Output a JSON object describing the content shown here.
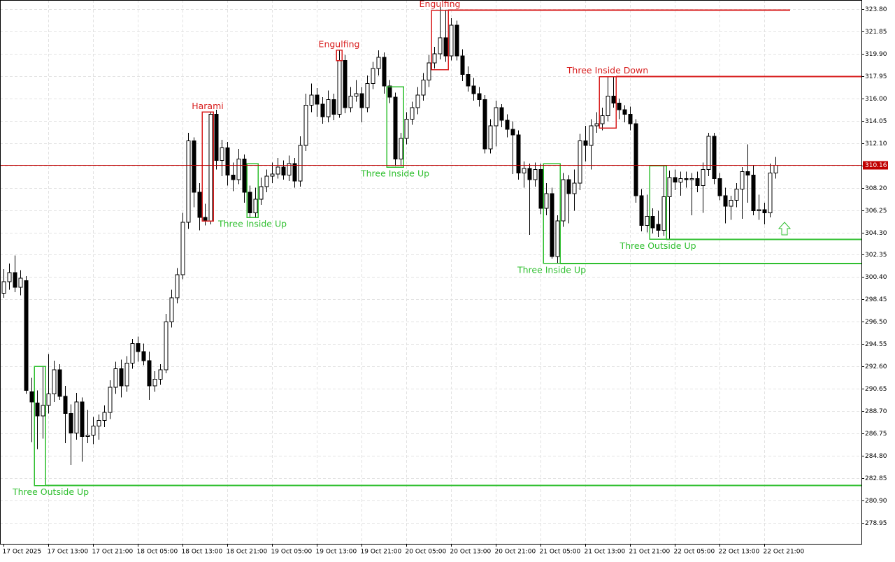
{
  "chart_data": {
    "type": "candlestick",
    "ohlc": [
      [
        299.0,
        301.1,
        298.6,
        300.0
      ],
      [
        300.0,
        301.6,
        299.3,
        300.8
      ],
      [
        300.8,
        302.3,
        299.1,
        299.5
      ],
      [
        299.5,
        301.0,
        298.8,
        300.3
      ],
      [
        300.1,
        300.5,
        290.2,
        290.5
      ],
      [
        290.4,
        291.6,
        286.0,
        289.5
      ],
      [
        289.4,
        290.5,
        285.4,
        288.3
      ],
      [
        288.3,
        292.6,
        286.3,
        289.2
      ],
      [
        289.2,
        293.7,
        288.5,
        290.2
      ],
      [
        290.2,
        293.1,
        289.5,
        292.3
      ],
      [
        292.3,
        292.8,
        289.7,
        290.0
      ],
      [
        290.0,
        290.9,
        285.9,
        288.5
      ],
      [
        288.5,
        289.3,
        284.0,
        286.8
      ],
      [
        286.8,
        290.3,
        286.2,
        289.5
      ],
      [
        289.5,
        289.9,
        284.3,
        286.5
      ],
      [
        286.5,
        288.8,
        285.9,
        286.6
      ],
      [
        286.6,
        288.2,
        285.8,
        287.4
      ],
      [
        287.4,
        288.4,
        286.2,
        287.9
      ],
      [
        287.9,
        289.2,
        287.3,
        288.6
      ],
      [
        288.6,
        291.4,
        288.0,
        290.8
      ],
      [
        290.8,
        293.0,
        290.2,
        292.4
      ],
      [
        292.4,
        293.2,
        289.9,
        290.9
      ],
      [
        290.9,
        293.5,
        290.4,
        292.9
      ],
      [
        292.9,
        295.0,
        292.4,
        294.6
      ],
      [
        294.6,
        295.2,
        293.0,
        293.9
      ],
      [
        293.9,
        294.6,
        292.7,
        293.1
      ],
      [
        293.1,
        293.9,
        289.7,
        290.9
      ],
      [
        290.9,
        292.2,
        290.4,
        291.5
      ],
      [
        291.5,
        292.8,
        291.0,
        292.3
      ],
      [
        292.3,
        297.2,
        292.0,
        296.5
      ],
      [
        296.5,
        299.3,
        296.0,
        298.6
      ],
      [
        298.6,
        301.2,
        298.1,
        300.6
      ],
      [
        300.6,
        306.0,
        300.2,
        305.2
      ],
      [
        305.2,
        313.0,
        304.6,
        312.3
      ],
      [
        312.3,
        312.6,
        306.5,
        307.8
      ],
      [
        307.8,
        308.6,
        304.5,
        305.6
      ],
      [
        305.6,
        306.8,
        304.9,
        305.3
      ],
      [
        305.3,
        314.8,
        305.0,
        314.6
      ],
      [
        314.6,
        315.0,
        309.8,
        310.6
      ],
      [
        310.6,
        312.4,
        309.2,
        311.7
      ],
      [
        311.7,
        312.2,
        308.4,
        309.3
      ],
      [
        309.3,
        310.4,
        307.9,
        308.9
      ],
      [
        308.9,
        311.6,
        308.5,
        310.7
      ],
      [
        310.7,
        311.1,
        306.9,
        307.8
      ],
      [
        307.8,
        308.4,
        305.6,
        306.0
      ],
      [
        306.0,
        308.2,
        305.6,
        307.2
      ],
      [
        307.2,
        309.1,
        306.7,
        308.3
      ],
      [
        308.3,
        309.8,
        307.8,
        309.2
      ],
      [
        309.2,
        310.4,
        308.6,
        309.4
      ],
      [
        309.4,
        310.8,
        309.0,
        310.0
      ],
      [
        310.0,
        310.6,
        308.9,
        309.3
      ],
      [
        309.3,
        311.0,
        308.8,
        310.3
      ],
      [
        310.3,
        310.8,
        308.2,
        308.8
      ],
      [
        308.8,
        312.7,
        308.3,
        311.9
      ],
      [
        311.9,
        316.4,
        311.4,
        315.4
      ],
      [
        315.4,
        317.3,
        314.8,
        316.3
      ],
      [
        316.3,
        316.9,
        314.4,
        315.5
      ],
      [
        315.5,
        316.1,
        313.8,
        314.4
      ],
      [
        314.4,
        316.7,
        313.9,
        315.9
      ],
      [
        315.9,
        316.4,
        314.1,
        314.6
      ],
      [
        314.6,
        320.2,
        314.3,
        319.3
      ],
      [
        319.3,
        319.8,
        314.7,
        315.2
      ],
      [
        315.2,
        317.0,
        314.8,
        316.2
      ],
      [
        316.2,
        317.6,
        315.7,
        316.4
      ],
      [
        316.4,
        317.0,
        313.9,
        315.2
      ],
      [
        315.2,
        318.0,
        314.8,
        317.3
      ],
      [
        317.3,
        319.2,
        316.8,
        318.6
      ],
      [
        318.6,
        320.2,
        318.0,
        319.6
      ],
      [
        319.6,
        320.0,
        316.4,
        317.1
      ],
      [
        317.1,
        317.6,
        315.6,
        316.1
      ],
      [
        316.1,
        316.5,
        310.1,
        310.7
      ],
      [
        310.7,
        313.0,
        310.1,
        312.5
      ],
      [
        312.5,
        314.8,
        312.0,
        314.2
      ],
      [
        314.2,
        315.7,
        313.7,
        315.2
      ],
      [
        315.2,
        317.0,
        314.6,
        316.3
      ],
      [
        316.3,
        318.2,
        315.8,
        317.6
      ],
      [
        317.6,
        319.8,
        317.0,
        319.1
      ],
      [
        319.1,
        320.5,
        318.6,
        319.9
      ],
      [
        319.9,
        324.0,
        319.4,
        321.3
      ],
      [
        321.3,
        323.7,
        319.2,
        319.7
      ],
      [
        319.7,
        323.0,
        319.3,
        322.4
      ],
      [
        322.4,
        322.8,
        319.3,
        319.7
      ],
      [
        319.7,
        320.3,
        317.5,
        318.1
      ],
      [
        318.1,
        318.8,
        316.6,
        317.1
      ],
      [
        317.1,
        317.8,
        315.8,
        316.4
      ],
      [
        316.4,
        317.0,
        315.3,
        315.9
      ],
      [
        315.9,
        316.3,
        311.2,
        311.6
      ],
      [
        311.6,
        314.2,
        311.2,
        313.6
      ],
      [
        313.6,
        315.8,
        311.8,
        315.2
      ],
      [
        315.2,
        315.5,
        313.5,
        314.1
      ],
      [
        314.1,
        314.6,
        312.6,
        313.3
      ],
      [
        313.3,
        314.0,
        309.4,
        312.8
      ],
      [
        312.8,
        313.2,
        308.9,
        309.5
      ],
      [
        309.5,
        310.5,
        308.2,
        309.9
      ],
      [
        309.9,
        310.3,
        304.1,
        308.9
      ],
      [
        308.9,
        310.4,
        308.3,
        309.8
      ],
      [
        309.8,
        310.3,
        305.9,
        306.4
      ],
      [
        306.4,
        308.6,
        305.8,
        307.7
      ],
      [
        307.7,
        308.2,
        302.0,
        302.2
      ],
      [
        302.2,
        305.8,
        301.6,
        305.3
      ],
      [
        305.3,
        309.5,
        304.8,
        308.9
      ],
      [
        308.9,
        309.3,
        305.1,
        307.7
      ],
      [
        307.7,
        309.8,
        306.2,
        308.6
      ],
      [
        308.6,
        312.9,
        308.0,
        312.3
      ],
      [
        312.3,
        313.6,
        310.5,
        311.9
      ],
      [
        311.9,
        314.2,
        309.8,
        313.6
      ],
      [
        313.6,
        314.8,
        313.0,
        313.8
      ],
      [
        313.8,
        315.2,
        313.2,
        314.5
      ],
      [
        314.5,
        317.9,
        314.0,
        316.2
      ],
      [
        316.2,
        317.9,
        315.2,
        315.6
      ],
      [
        315.6,
        316.0,
        314.2,
        315.0
      ],
      [
        315.0,
        315.4,
        313.9,
        314.6
      ],
      [
        314.6,
        315.3,
        313.2,
        313.8
      ],
      [
        313.8,
        314.2,
        306.9,
        307.5
      ],
      [
        307.5,
        308.1,
        304.4,
        304.9
      ],
      [
        304.9,
        307.6,
        304.3,
        305.7
      ],
      [
        305.7,
        306.4,
        304.2,
        304.7
      ],
      [
        305.0,
        306.2,
        303.9,
        304.5
      ],
      [
        304.5,
        310.1,
        304.0,
        307.4
      ],
      [
        307.4,
        309.7,
        303.7,
        309.1
      ],
      [
        309.1,
        309.8,
        308.0,
        308.7
      ],
      [
        308.7,
        309.6,
        307.5,
        309.0
      ],
      [
        309.0,
        309.6,
        308.2,
        308.9
      ],
      [
        308.9,
        309.5,
        305.8,
        309.0
      ],
      [
        309.0,
        309.6,
        307.8,
        308.4
      ],
      [
        308.4,
        310.4,
        306.0,
        309.8
      ],
      [
        309.8,
        313.0,
        309.2,
        312.7
      ],
      [
        312.7,
        313.0,
        308.5,
        309.0
      ],
      [
        309.0,
        309.5,
        307.1,
        307.5
      ],
      [
        307.5,
        308.2,
        305.1,
        306.6
      ],
      [
        306.6,
        307.5,
        305.4,
        307.1
      ],
      [
        307.1,
        308.6,
        306.5,
        308.1
      ],
      [
        308.1,
        310.0,
        305.5,
        309.6
      ],
      [
        309.6,
        312.0,
        306.9,
        309.3
      ],
      [
        309.3,
        310.2,
        305.8,
        306.2
      ],
      [
        306.2,
        307.6,
        305.4,
        306.3
      ],
      [
        306.3,
        306.9,
        305.0,
        306.0
      ],
      [
        306.0,
        310.3,
        305.6,
        309.5
      ],
      [
        309.5,
        310.9,
        309.0,
        310.16
      ]
    ],
    "xlim": [
      -0.625,
      153.375
    ],
    "xticks": [
      {
        "value": 0,
        "label": "17 Oct 2025"
      },
      {
        "value": 8,
        "label": "17 Oct 13:00"
      },
      {
        "value": 16,
        "label": "17 Oct 21:00"
      },
      {
        "value": 24,
        "label": "18 Oct 05:00"
      },
      {
        "value": 32,
        "label": "18 Oct 13:00"
      },
      {
        "value": 40,
        "label": "18 Oct 21:00"
      },
      {
        "value": 48,
        "label": "19 Oct 05:00"
      },
      {
        "value": 56,
        "label": "19 Oct 13:00"
      },
      {
        "value": 64,
        "label": "19 Oct 21:00"
      },
      {
        "value": 72,
        "label": "20 Oct 05:00"
      },
      {
        "value": 80,
        "label": "20 Oct 13:00"
      },
      {
        "value": 88,
        "label": "20 Oct 21:00"
      },
      {
        "value": 96,
        "label": "21 Oct 05:00"
      },
      {
        "value": 104,
        "label": "21 Oct 13:00"
      },
      {
        "value": 112,
        "label": "21 Oct 21:00"
      },
      {
        "value": 120,
        "label": "22 Oct 05:00"
      },
      {
        "value": 128,
        "label": "22 Oct 13:00"
      },
      {
        "value": 136,
        "label": "22 Oct 21:00"
      }
    ],
    "ylim": [
      277.12,
      324.59
    ],
    "yticks": [
      {
        "value": 323.8,
        "label": "323.80"
      },
      {
        "value": 321.85,
        "label": "321.85"
      },
      {
        "value": 319.9,
        "label": "319.90"
      },
      {
        "value": 317.95,
        "label": "317.95"
      },
      {
        "value": 316,
        "label": "316.00"
      },
      {
        "value": 314.05,
        "label": "314.05"
      },
      {
        "value": 312.1,
        "label": "312.10"
      },
      {
        "value": 310.15,
        "label": "310.15"
      },
      {
        "value": 308.2,
        "label": "308.20"
      },
      {
        "value": 306.25,
        "label": "306.25"
      },
      {
        "value": 304.3,
        "label": "304.30"
      },
      {
        "value": 302.35,
        "label": "302.35"
      },
      {
        "value": 300.4,
        "label": "300.40"
      },
      {
        "value": 298.45,
        "label": "298.45"
      },
      {
        "value": 296.5,
        "label": "296.50"
      },
      {
        "value": 294.55,
        "label": "294.55"
      },
      {
        "value": 292.6,
        "label": "292.60"
      },
      {
        "value": 290.65,
        "label": "290.65"
      },
      {
        "value": 288.7,
        "label": "288.70"
      },
      {
        "value": 286.75,
        "label": "286.75"
      },
      {
        "value": 284.8,
        "label": "284.80"
      },
      {
        "value": 282.85,
        "label": "282.85"
      },
      {
        "value": 280.9,
        "label": "280.90"
      },
      {
        "value": 278.95,
        "label": "278.95"
      }
    ],
    "grid": true,
    "current_price": 310.16,
    "current_color": "#c00000",
    "patterns": [
      {
        "text": "Three Outside Up",
        "color": "#2fbf2f",
        "bullish": true,
        "from": 6,
        "to": 7,
        "low": 282.2,
        "high": 292.6,
        "line": true
      },
      {
        "text": "Harami",
        "color": "#d81e1e",
        "bullish": false,
        "from": 36,
        "to": 37,
        "low": 305.3,
        "high": 314.8,
        "line": false
      },
      {
        "text": "Three Inside Up",
        "color": "#2fbf2f",
        "bullish": true,
        "from": 44,
        "to": 45,
        "low": 305.6,
        "high": 310.3,
        "line": false
      },
      {
        "text": "Engulfing",
        "color": "#d81e1e",
        "bullish": false,
        "from": 60,
        "to": 60,
        "low": 319.3,
        "high": 320.2,
        "line": false
      },
      {
        "text": "Three Inside Up",
        "color": "#2fbf2f",
        "bullish": true,
        "from": 69,
        "to": 71,
        "low": 310.0,
        "high": 317.0,
        "line": false
      },
      {
        "text": "Engulfing",
        "color": "#d81e1e",
        "bullish": false,
        "from": 77,
        "to": 79,
        "low": 318.5,
        "high": 323.7,
        "line": true,
        "line_to": 140.6
      },
      {
        "text": "Three Inside Up",
        "color": "#2fbf2f",
        "bullish": true,
        "from": 97,
        "to": 99,
        "low": 301.6,
        "high": 310.3,
        "line": true
      },
      {
        "text": "Three Inside Down",
        "color": "#d81e1e",
        "bullish": false,
        "from": 107,
        "to": 109,
        "low": 313.4,
        "high": 317.9,
        "line": true
      },
      {
        "text": "Three Outside Up",
        "color": "#2fbf2f",
        "bullish": true,
        "from": 116,
        "to": 118,
        "low": 303.7,
        "high": 310.1,
        "line": true
      }
    ]
  }
}
